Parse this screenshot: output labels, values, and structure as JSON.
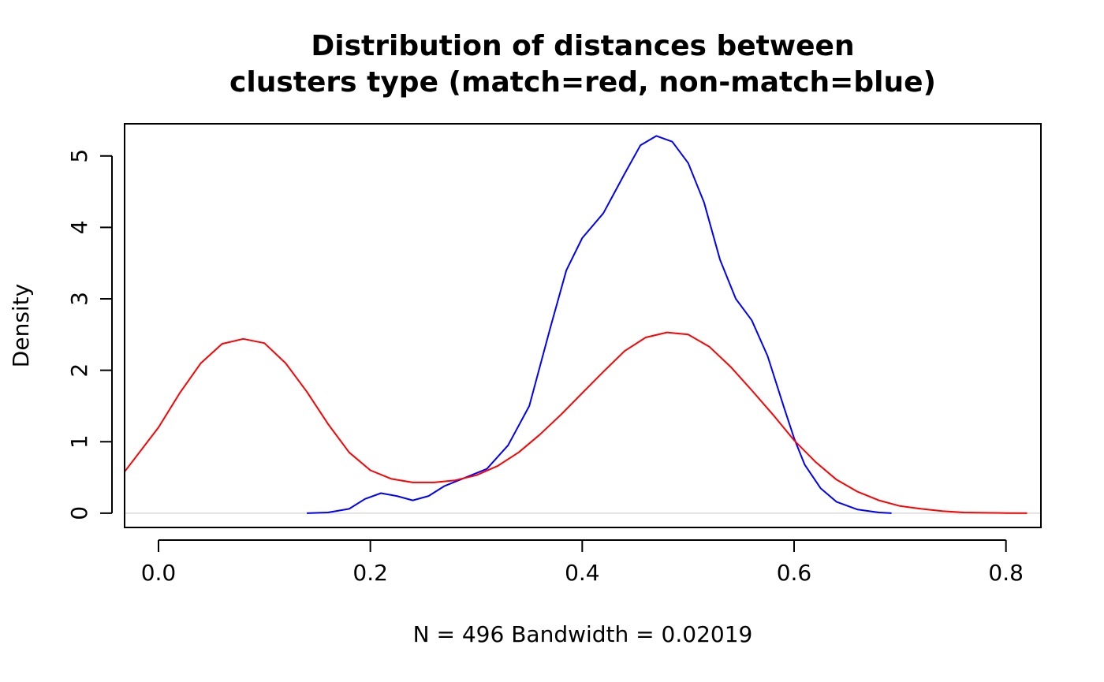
{
  "chart_data": {
    "type": "line",
    "title_line1": "Distribution of distances between",
    "title_line2": "clusters type (match=red, non-match=blue)",
    "xlabel": "N = 496   Bandwidth = 0.02019",
    "ylabel": "Density",
    "xlim": [
      -0.032,
      0.833
    ],
    "ylim": [
      -0.2,
      5.45
    ],
    "xticks": [
      0.0,
      0.2,
      0.4,
      0.6,
      0.8
    ],
    "xtick_labels": [
      "0.0",
      "0.2",
      "0.4",
      "0.6",
      "0.8"
    ],
    "yticks": [
      0,
      1,
      2,
      3,
      4,
      5
    ],
    "ytick_labels": [
      "0",
      "1",
      "2",
      "3",
      "4",
      "5"
    ],
    "baseline_color": "#d9d9d9",
    "series": [
      {
        "color": "#0000ff",
        "points": [
          [
            0.14,
            0
          ],
          [
            0.16,
            0.01
          ],
          [
            0.18,
            0.06
          ],
          [
            0.195,
            0.2
          ],
          [
            0.21,
            0.28
          ],
          [
            0.225,
            0.24
          ],
          [
            0.24,
            0.18
          ],
          [
            0.255,
            0.24
          ],
          [
            0.27,
            0.38
          ],
          [
            0.29,
            0.5
          ],
          [
            0.31,
            0.62
          ],
          [
            0.33,
            0.95
          ],
          [
            0.35,
            1.5
          ],
          [
            0.37,
            2.6
          ],
          [
            0.385,
            3.4
          ],
          [
            0.4,
            3.85
          ],
          [
            0.42,
            4.2
          ],
          [
            0.44,
            4.75
          ],
          [
            0.455,
            5.15
          ],
          [
            0.47,
            5.28
          ],
          [
            0.485,
            5.2
          ],
          [
            0.5,
            4.9
          ],
          [
            0.515,
            4.35
          ],
          [
            0.53,
            3.55
          ],
          [
            0.545,
            3.0
          ],
          [
            0.56,
            2.7
          ],
          [
            0.575,
            2.2
          ],
          [
            0.59,
            1.5
          ],
          [
            0.6,
            1.05
          ],
          [
            0.61,
            0.68
          ],
          [
            0.625,
            0.35
          ],
          [
            0.64,
            0.16
          ],
          [
            0.66,
            0.05
          ],
          [
            0.68,
            0.01
          ],
          [
            0.692,
            0
          ]
        ]
      },
      {
        "color": "#ff0000",
        "points": [
          [
            -0.032,
            0.58
          ],
          [
            0,
            1.2
          ],
          [
            0.02,
            1.68
          ],
          [
            0.04,
            2.1
          ],
          [
            0.06,
            2.37
          ],
          [
            0.08,
            2.44
          ],
          [
            0.1,
            2.38
          ],
          [
            0.12,
            2.1
          ],
          [
            0.14,
            1.7
          ],
          [
            0.16,
            1.25
          ],
          [
            0.18,
            0.85
          ],
          [
            0.2,
            0.6
          ],
          [
            0.22,
            0.48
          ],
          [
            0.24,
            0.43
          ],
          [
            0.26,
            0.43
          ],
          [
            0.28,
            0.46
          ],
          [
            0.3,
            0.53
          ],
          [
            0.32,
            0.66
          ],
          [
            0.34,
            0.85
          ],
          [
            0.36,
            1.1
          ],
          [
            0.38,
            1.38
          ],
          [
            0.4,
            1.68
          ],
          [
            0.42,
            1.98
          ],
          [
            0.44,
            2.27
          ],
          [
            0.46,
            2.46
          ],
          [
            0.48,
            2.53
          ],
          [
            0.5,
            2.5
          ],
          [
            0.52,
            2.33
          ],
          [
            0.54,
            2.05
          ],
          [
            0.56,
            1.72
          ],
          [
            0.58,
            1.38
          ],
          [
            0.6,
            1.02
          ],
          [
            0.62,
            0.72
          ],
          [
            0.64,
            0.47
          ],
          [
            0.66,
            0.3
          ],
          [
            0.68,
            0.18
          ],
          [
            0.7,
            0.1
          ],
          [
            0.72,
            0.06
          ],
          [
            0.74,
            0.03
          ],
          [
            0.76,
            0.01
          ],
          [
            0.78,
            0.005
          ],
          [
            0.8,
            0.002
          ],
          [
            0.82,
            0
          ]
        ]
      }
    ]
  }
}
